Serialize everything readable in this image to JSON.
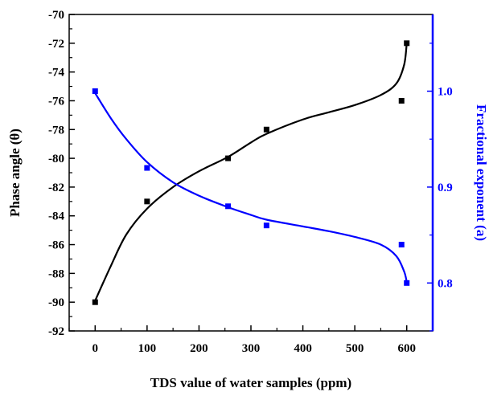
{
  "chart_data": {
    "type": "scatter",
    "xlabel": "TDS value of water samples (ppm)",
    "ylabel_left": "Phase angle (θ)",
    "ylabel_right": "Fractional exponent (a)",
    "xlim": [
      -50,
      650
    ],
    "ylim_left": [
      -92,
      -70
    ],
    "ylim_right": [
      0.75,
      1.08
    ],
    "x_ticks": [
      "0",
      "100",
      "200",
      "300",
      "400",
      "500",
      "600"
    ],
    "y_left_ticks": [
      "-92",
      "-90",
      "-88",
      "-86",
      "-84",
      "-82",
      "-80",
      "-78",
      "-76",
      "-74",
      "-72",
      "-70"
    ],
    "y_right_ticks": [
      "0.8",
      "0.9",
      "1.0"
    ],
    "grid": false,
    "colors": {
      "left_axis": "#000000",
      "right_axis": "#0000ff"
    },
    "series": [
      {
        "axis": "left",
        "color": "#000000",
        "x": [
          0,
          100,
          256,
          330,
          590,
          600
        ],
        "y": [
          -90,
          -83,
          -80,
          -78,
          -76,
          -72
        ],
        "fit_curve": [
          [
            0,
            -89.9
          ],
          [
            30,
            -87.5
          ],
          [
            60,
            -85.3
          ],
          [
            100,
            -83.5
          ],
          [
            150,
            -82.0
          ],
          [
            200,
            -80.9
          ],
          [
            256,
            -79.9
          ],
          [
            300,
            -78.9
          ],
          [
            330,
            -78.3
          ],
          [
            400,
            -77.3
          ],
          [
            450,
            -76.8
          ],
          [
            500,
            -76.3
          ],
          [
            550,
            -75.6
          ],
          [
            580,
            -74.8
          ],
          [
            595,
            -73.5
          ],
          [
            600,
            -72
          ]
        ]
      },
      {
        "axis": "right",
        "color": "#0000ff",
        "x": [
          0,
          100,
          256,
          330,
          590,
          600
        ],
        "y": [
          1.0,
          0.92,
          0.88,
          0.86,
          0.84,
          0.8
        ],
        "fit_curve": [
          [
            0,
            0.998
          ],
          [
            30,
            0.972
          ],
          [
            60,
            0.95
          ],
          [
            100,
            0.926
          ],
          [
            150,
            0.905
          ],
          [
            200,
            0.891
          ],
          [
            256,
            0.879
          ],
          [
            300,
            0.871
          ],
          [
            330,
            0.866
          ],
          [
            400,
            0.859
          ],
          [
            450,
            0.854
          ],
          [
            500,
            0.848
          ],
          [
            550,
            0.84
          ],
          [
            580,
            0.828
          ],
          [
            595,
            0.812
          ],
          [
            600,
            0.801
          ]
        ]
      }
    ]
  }
}
